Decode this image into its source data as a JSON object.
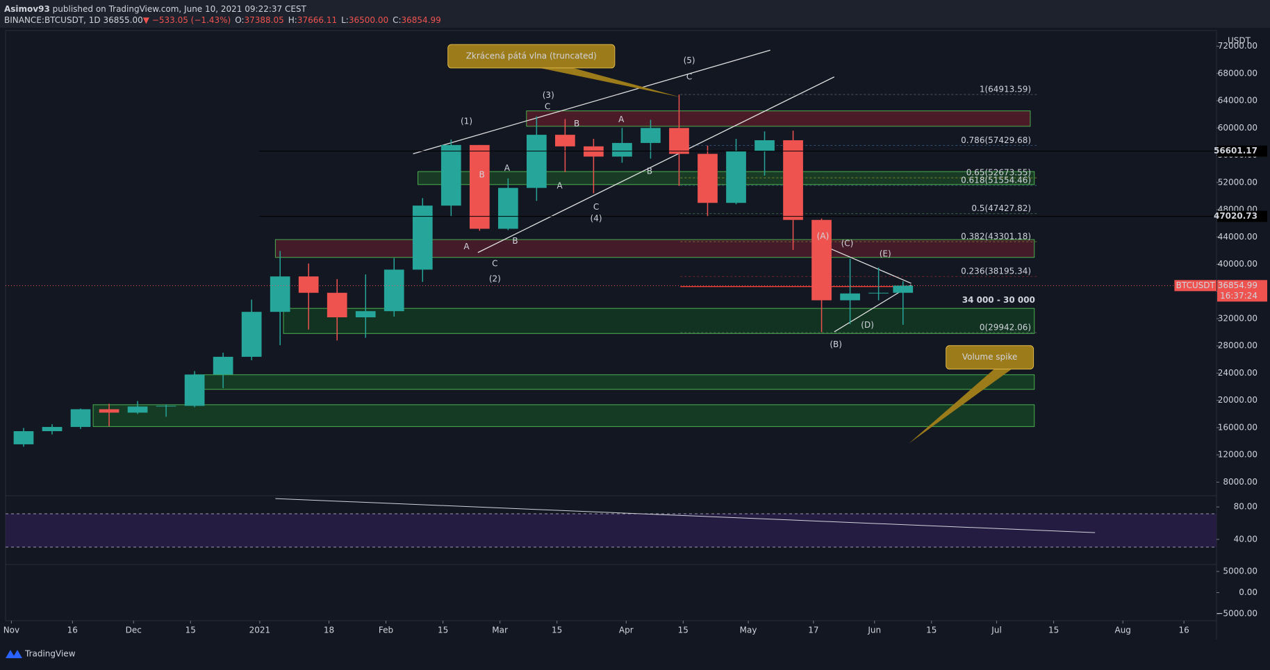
{
  "header": {
    "user": "Asimov93",
    "published": "published on TradingView.com, June 10, 2021 09:22:37 CEST",
    "symbol": "BINANCE:BTCUSDT, 1D",
    "last": "36855.00",
    "change": "▼ −533.05 (−1.43%)",
    "ohlc": [
      {
        "k": "O:",
        "v": "37388.05"
      },
      {
        "k": "H:",
        "v": "37666.11"
      },
      {
        "k": "L:",
        "v": "36500.00"
      },
      {
        "k": "C:",
        "v": "36854.99"
      }
    ]
  },
  "chart_data": {
    "type": "candlestick",
    "currency": "USDT",
    "x": [
      3,
      10,
      17,
      24,
      31,
      38,
      45,
      52,
      59,
      66,
      73,
      80,
      87,
      94,
      101,
      108,
      115,
      122,
      129,
      136,
      143,
      150,
      157,
      164,
      171,
      178,
      185,
      192,
      199,
      206,
      213,
      219
    ],
    "open": [
      13550,
      15480,
      16100,
      18700,
      18200,
      19100,
      19200,
      23800,
      26400,
      33000,
      38200,
      35800,
      32200,
      33100,
      39200,
      48600,
      57500,
      45200,
      51200,
      59000,
      57300,
      55800,
      57800,
      60000,
      56200,
      49000,
      56600,
      58200,
      46500,
      34700,
      35700,
      35800
    ],
    "high": [
      15950,
      16500,
      18800,
      19500,
      19900,
      19400,
      24300,
      27000,
      34800,
      41950,
      40100,
      37800,
      38500,
      40900,
      49700,
      58300,
      57500,
      52600,
      61700,
      61300,
      58400,
      60000,
      61200,
      64900,
      57400,
      58400,
      59500,
      59600,
      46700,
      40800,
      39500,
      37500
    ],
    "low": [
      13200,
      15000,
      15800,
      16200,
      18000,
      17600,
      19000,
      21800,
      25900,
      28100,
      30400,
      28800,
      29200,
      32300,
      37400,
      47000,
      44900,
      45000,
      49300,
      53500,
      50400,
      54900,
      55500,
      51500,
      47000,
      48800,
      53000,
      42100,
      30000,
      31200,
      34700,
      31100
    ],
    "close": [
      15480,
      16100,
      18700,
      18200,
      19100,
      19200,
      23800,
      26400,
      33000,
      38200,
      35800,
      32200,
      33100,
      39200,
      48600,
      57500,
      45200,
      51200,
      59000,
      57300,
      55800,
      57800,
      60000,
      56200,
      49000,
      56600,
      58200,
      46500,
      34700,
      35700,
      35800,
      36855
    ],
    "up_color": "#26a69a",
    "down_color": "#ef5350",
    "xlim": [
      -2.8,
      296
    ],
    "ylim": [
      6000,
      74000
    ],
    "xticks": [
      {
        "value": 0,
        "label": "Nov"
      },
      {
        "value": 15,
        "label": "16"
      },
      {
        "value": 30,
        "label": "Dec"
      },
      {
        "value": 44,
        "label": "15"
      },
      {
        "value": 61,
        "label": "2021"
      },
      {
        "value": 78,
        "label": "18"
      },
      {
        "value": 92,
        "label": "Feb"
      },
      {
        "value": 106,
        "label": "15"
      },
      {
        "value": 120,
        "label": "Mar"
      },
      {
        "value": 134,
        "label": "15"
      },
      {
        "value": 151,
        "label": "Apr"
      },
      {
        "value": 165,
        "label": "15"
      },
      {
        "value": 181,
        "label": "May"
      },
      {
        "value": 197,
        "label": "17"
      },
      {
        "value": 212,
        "label": "Jun"
      },
      {
        "value": 226,
        "label": "15"
      },
      {
        "value": 242,
        "label": "Jul"
      },
      {
        "value": 256,
        "label": "15"
      },
      {
        "value": 273,
        "label": "Aug"
      },
      {
        "value": 288,
        "label": "16"
      }
    ],
    "yticks": [
      {
        "value": 8000,
        "label": "8000.00"
      },
      {
        "value": 12000,
        "label": "12000.00"
      },
      {
        "value": 16000,
        "label": "16000.00"
      },
      {
        "value": 20000,
        "label": "20000.00"
      },
      {
        "value": 24000,
        "label": "24000.00"
      },
      {
        "value": 28000,
        "label": "28000.00"
      },
      {
        "value": 32000,
        "label": "32000.00"
      },
      {
        "value": 36000,
        "label": "36000.00"
      },
      {
        "value": 40000,
        "label": "40000.00"
      },
      {
        "value": 44000,
        "label": "44000.00"
      },
      {
        "value": 48000,
        "label": "48000.00"
      },
      {
        "value": 52000,
        "label": "52000.00"
      },
      {
        "value": 56000,
        "label": "56000.00"
      },
      {
        "value": 60000,
        "label": "60000.00"
      },
      {
        "value": 64000,
        "label": "64000.00"
      },
      {
        "value": 68000,
        "label": "68000.00"
      },
      {
        "value": 72000,
        "label": "72000.00"
      }
    ],
    "price_tags": [
      {
        "value": 56601.17,
        "label": "56601.17"
      },
      {
        "value": 47020.73,
        "label": "47020.73"
      }
    ],
    "last_price": {
      "name": "BTCUSDT",
      "value": 36854.99,
      "label": "36854.99",
      "countdown": "16:37:24"
    },
    "fib": [
      {
        "value": 64913.59,
        "label": "1(64913.59)",
        "color": "#9aa0a6"
      },
      {
        "value": 57429.68,
        "label": "0.786(57429.68)",
        "color": "#4a90d9"
      },
      {
        "value": 52673.55,
        "label": "0.65(52673.55)",
        "color": "#f5e11b"
      },
      {
        "value": 51554.46,
        "label": "0.618(51554.46)",
        "color": "#5ab0c8"
      },
      {
        "value": 47427.82,
        "label": "0.5(47427.82)",
        "color": "#66bb6a"
      },
      {
        "value": 43301.18,
        "label": "0.382(43301.18)",
        "color": "#b8c94a"
      },
      {
        "value": 38195.34,
        "label": "0.236(38195.34)",
        "color": "#e53935"
      },
      {
        "value": 29942.06,
        "label": "0(29942.06)",
        "color": "#9aa0a6"
      }
    ],
    "annotations": [
      {
        "text": "(1)",
        "color": "#e53935"
      },
      {
        "text": "(2)",
        "color": "#e53935"
      },
      {
        "text": "(3)",
        "color": "#e53935"
      },
      {
        "text": "(4)",
        "color": "#e53935"
      },
      {
        "text": "(5)",
        "color": "#e53935"
      },
      {
        "text": "C",
        "color": "#f5e11b"
      },
      {
        "text": "C",
        "color": "#f5e11b"
      },
      {
        "text": "C",
        "color": "#f5e11b"
      },
      {
        "text": "C",
        "color": "#f5e11b"
      },
      {
        "text": "B",
        "color": "#f5e11b"
      },
      {
        "text": "A",
        "color": "#f5e11b"
      },
      {
        "text": "A",
        "color": "#f5e11b"
      },
      {
        "text": "B",
        "color": "#f5e11b"
      },
      {
        "text": "A",
        "color": "#f5e11b"
      },
      {
        "text": "B",
        "color": "#f5e11b"
      },
      {
        "text": "A",
        "color": "#f5e11b"
      },
      {
        "text": "B",
        "color": "#f5e11b"
      },
      {
        "text": "(A)",
        "color": "#ff9800"
      },
      {
        "text": "(B)",
        "color": "#ff9800"
      },
      {
        "text": "(C)",
        "color": "#ff9800"
      },
      {
        "text": "(D)",
        "color": "#ff9800"
      },
      {
        "text": "(E)",
        "color": "#ff9800"
      }
    ],
    "callouts": [
      "Zkrácená pátá vlna (truncated)",
      "Volume spike"
    ],
    "range_label": "34 000 - 30 000"
  },
  "rsi": {
    "ylim": [
      9,
      93
    ],
    "yticks": [
      {
        "value": 80,
        "label": "80.00"
      },
      {
        "value": 40,
        "label": "40.00"
      }
    ]
  },
  "macd": {
    "ylim": [
      -6670,
      6670
    ],
    "yticks": [
      {
        "value": 5000,
        "label": "5000.00"
      },
      {
        "value": 0,
        "label": "0.00"
      },
      {
        "value": -5000,
        "label": "−5000.00"
      }
    ]
  },
  "footer": {
    "brand": "TradingView"
  }
}
